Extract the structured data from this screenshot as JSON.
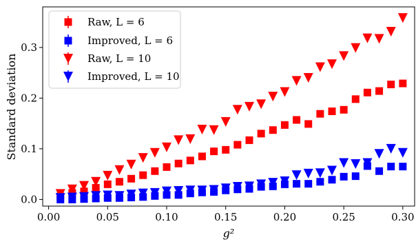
{
  "chart_data": {
    "type": "scatter",
    "xlabel": "g²",
    "ylabel": "Standard deviation",
    "xlim": [
      -0.005,
      0.31
    ],
    "ylim": [
      -0.013,
      0.38
    ],
    "xticks": [
      0.0,
      0.05,
      0.1,
      0.15,
      0.2,
      0.25,
      0.3
    ],
    "xtick_labels": [
      "0.00",
      "0.05",
      "0.10",
      "0.15",
      "0.20",
      "0.25",
      "0.30"
    ],
    "yticks": [
      0.0,
      0.1,
      0.2,
      0.3
    ],
    "ytick_labels": [
      "0.0",
      "0.1",
      "0.2",
      "0.3"
    ],
    "legend_position": "top-left",
    "x": [
      0.01,
      0.02,
      0.03,
      0.04,
      0.05,
      0.06,
      0.07,
      0.08,
      0.09,
      0.1,
      0.11,
      0.12,
      0.13,
      0.14,
      0.15,
      0.16,
      0.17,
      0.18,
      0.19,
      0.2,
      0.21,
      0.22,
      0.23,
      0.24,
      0.25,
      0.26,
      0.27,
      0.28,
      0.29,
      0.3
    ],
    "series": [
      {
        "name": "Raw, L = 6",
        "marker": "square",
        "color": "#ff0000",
        "values": [
          0.006,
          0.013,
          0.016,
          0.023,
          0.03,
          0.035,
          0.041,
          0.048,
          0.056,
          0.064,
          0.071,
          0.077,
          0.085,
          0.095,
          0.098,
          0.108,
          0.117,
          0.13,
          0.137,
          0.147,
          0.157,
          0.149,
          0.169,
          0.174,
          0.177,
          0.198,
          0.211,
          0.214,
          0.227,
          0.229
        ]
      },
      {
        "name": "Improved, L = 6",
        "marker": "square",
        "color": "#0000ff",
        "values": [
          0.0,
          0.0,
          0.001,
          0.002,
          0.003,
          0.003,
          0.004,
          0.005,
          0.007,
          0.009,
          0.009,
          0.012,
          0.014,
          0.015,
          0.018,
          0.02,
          0.021,
          0.025,
          0.026,
          0.03,
          0.031,
          0.031,
          0.035,
          0.039,
          0.045,
          0.046,
          0.066,
          0.056,
          0.065,
          0.065
        ]
      },
      {
        "name": "Raw, L = 10",
        "marker": "triangle-down",
        "color": "#ff0000",
        "values": [
          0.011,
          0.02,
          0.027,
          0.035,
          0.047,
          0.058,
          0.069,
          0.082,
          0.092,
          0.103,
          0.117,
          0.119,
          0.138,
          0.137,
          0.153,
          0.177,
          0.183,
          0.188,
          0.203,
          0.212,
          0.234,
          0.24,
          0.261,
          0.267,
          0.283,
          0.299,
          0.318,
          0.317,
          0.331,
          0.358
        ]
      },
      {
        "name": "Improved, L = 10",
        "marker": "triangle-down",
        "color": "#0000ff",
        "values": [
          0.003,
          0.004,
          0.005,
          0.007,
          0.008,
          0.007,
          0.01,
          0.012,
          0.013,
          0.016,
          0.017,
          0.018,
          0.018,
          0.019,
          0.022,
          0.025,
          0.026,
          0.03,
          0.033,
          0.036,
          0.048,
          0.051,
          0.052,
          0.057,
          0.072,
          0.07,
          0.072,
          0.09,
          0.1,
          0.092
        ]
      }
    ]
  }
}
